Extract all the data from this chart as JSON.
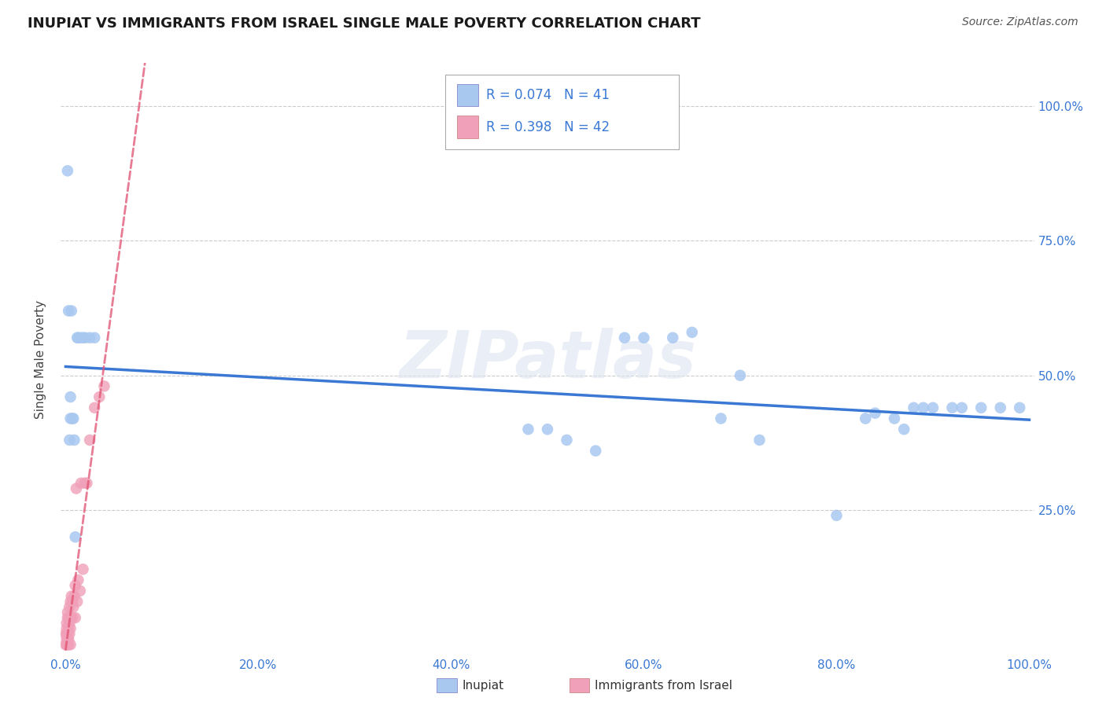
{
  "title": "INUPIAT VS IMMIGRANTS FROM ISRAEL SINGLE MALE POVERTY CORRELATION CHART",
  "source": "Source: ZipAtlas.com",
  "ylabel": "Single Male Poverty",
  "legend1_label": "Inupiat",
  "legend2_label": "Immigrants from Israel",
  "r1": "R = 0.074",
  "n1": "N = 41",
  "r2": "R = 0.398",
  "n2": "N = 42",
  "ytick_labels": [
    "100.0%",
    "75.0%",
    "50.0%",
    "25.0%"
  ],
  "ytick_values": [
    1.0,
    0.75,
    0.5,
    0.25
  ],
  "inupiat_x": [
    0.002,
    0.003,
    0.004,
    0.005,
    0.005,
    0.006,
    0.007,
    0.008,
    0.009,
    0.01,
    0.012,
    0.013,
    0.015,
    0.018,
    0.02,
    0.025,
    0.03,
    0.48,
    0.5,
    0.52,
    0.55,
    0.58,
    0.6,
    0.63,
    0.65,
    0.68,
    0.7,
    0.72,
    0.8,
    0.83,
    0.84,
    0.86,
    0.87,
    0.88,
    0.89,
    0.9,
    0.92,
    0.93,
    0.95,
    0.97,
    0.99
  ],
  "inupiat_y": [
    0.88,
    0.62,
    0.38,
    0.42,
    0.46,
    0.62,
    0.42,
    0.42,
    0.38,
    0.2,
    0.57,
    0.57,
    0.57,
    0.57,
    0.57,
    0.57,
    0.57,
    0.4,
    0.4,
    0.38,
    0.36,
    0.57,
    0.57,
    0.57,
    0.58,
    0.42,
    0.5,
    0.38,
    0.24,
    0.42,
    0.43,
    0.42,
    0.4,
    0.44,
    0.44,
    0.44,
    0.44,
    0.44,
    0.44,
    0.44,
    0.44
  ],
  "israel_x": [
    0.0,
    0.0,
    0.001,
    0.001,
    0.001,
    0.001,
    0.001,
    0.002,
    0.002,
    0.002,
    0.002,
    0.002,
    0.003,
    0.003,
    0.003,
    0.003,
    0.004,
    0.004,
    0.004,
    0.005,
    0.005,
    0.005,
    0.006,
    0.006,
    0.007,
    0.007,
    0.008,
    0.009,
    0.01,
    0.01,
    0.011,
    0.012,
    0.013,
    0.015,
    0.016,
    0.018,
    0.02,
    0.022,
    0.025,
    0.03,
    0.035,
    0.04
  ],
  "israel_y": [
    0.0,
    0.02,
    0.0,
    0.01,
    0.02,
    0.03,
    0.04,
    0.0,
    0.01,
    0.02,
    0.05,
    0.06,
    0.0,
    0.01,
    0.03,
    0.05,
    0.02,
    0.04,
    0.07,
    0.0,
    0.03,
    0.08,
    0.05,
    0.09,
    0.05,
    0.08,
    0.07,
    0.09,
    0.05,
    0.11,
    0.29,
    0.08,
    0.12,
    0.1,
    0.3,
    0.14,
    0.3,
    0.3,
    0.38,
    0.44,
    0.46,
    0.48
  ],
  "inupiat_color": "#a8c8f0",
  "israel_color": "#f0a0b8",
  "trend_inupiat_color": "#3a78d4",
  "trend_israel_color": "#e05070",
  "background_color": "#ffffff",
  "grid_color": "#cccccc"
}
